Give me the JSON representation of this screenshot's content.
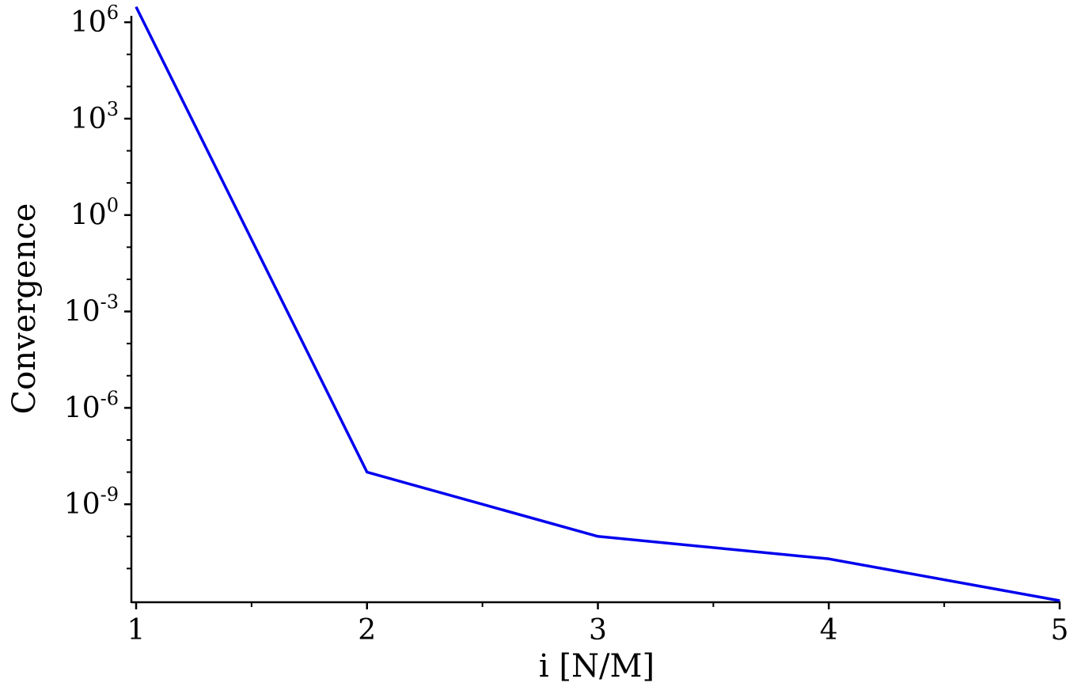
{
  "chart_data": {
    "type": "line",
    "xlabel": "i [N/M]",
    "ylabel": "Convergence",
    "x": [
      1,
      2,
      3,
      4,
      5
    ],
    "series": [
      {
        "values": [
          3000000.0,
          1e-08,
          1e-10,
          2e-11,
          1e-12
        ],
        "color": "#0000ee"
      }
    ],
    "xlim": [
      1,
      5
    ],
    "ylim_log10": [
      -12.0,
      6.2
    ],
    "y_scale": "log",
    "x_ticks": [
      "1",
      "2",
      "3",
      "4",
      "5"
    ],
    "y_ticks": [
      {
        "base": "10",
        "exp": "6"
      },
      {
        "base": "10",
        "exp": "3"
      },
      {
        "base": "10",
        "exp": "0"
      },
      {
        "base": "10",
        "exp": "-3"
      },
      {
        "base": "10",
        "exp": "-6"
      },
      {
        "base": "10",
        "exp": "-9"
      }
    ],
    "grid": false,
    "legend": "none"
  }
}
